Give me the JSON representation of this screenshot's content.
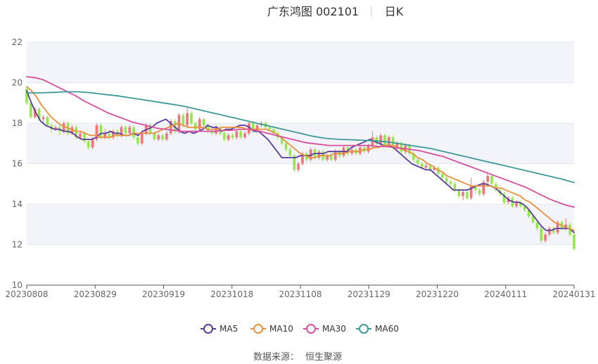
{
  "chart_data": {
    "type": "candlestick",
    "title": "广东鸿图 002101",
    "subtitle": "日K",
    "x_ticks": [
      "20230808",
      "20230829",
      "20230919",
      "20231018",
      "20231108",
      "20231129",
      "20231220",
      "20240111",
      "20240131"
    ],
    "y_ticks": [
      "10",
      "12",
      "14",
      "16",
      "18",
      "20",
      "22"
    ],
    "ylim": [
      10,
      22
    ],
    "grid": "horizontal",
    "legend_position": "bottom",
    "up_color": "#f07478",
    "down_color": "#94e84b",
    "candles": [
      {
        "o": 19.7,
        "c": 19.0,
        "h": 19.8,
        "l": 18.9
      },
      {
        "o": 19.0,
        "c": 18.3,
        "h": 19.1,
        "l": 18.2
      },
      {
        "o": 18.3,
        "c": 18.7,
        "h": 18.8,
        "l": 18.2
      },
      {
        "o": 18.7,
        "c": 18.2,
        "h": 18.8,
        "l": 18.1
      },
      {
        "o": 18.2,
        "c": 18.3,
        "h": 18.4,
        "l": 18.0
      },
      {
        "o": 18.3,
        "c": 17.9,
        "h": 18.4,
        "l": 17.8
      },
      {
        "o": 17.9,
        "c": 17.7,
        "h": 18.0,
        "l": 17.5
      },
      {
        "o": 17.7,
        "c": 17.8,
        "h": 17.9,
        "l": 17.6
      },
      {
        "o": 17.8,
        "c": 17.6,
        "h": 17.9,
        "l": 17.4
      },
      {
        "o": 17.6,
        "c": 18.0,
        "h": 18.1,
        "l": 17.5
      },
      {
        "o": 18.0,
        "c": 17.5,
        "h": 18.1,
        "l": 17.4
      },
      {
        "o": 17.5,
        "c": 17.8,
        "h": 17.9,
        "l": 17.4
      },
      {
        "o": 17.8,
        "c": 17.3,
        "h": 17.9,
        "l": 17.2
      },
      {
        "o": 17.3,
        "c": 17.5,
        "h": 17.6,
        "l": 17.2
      },
      {
        "o": 17.5,
        "c": 17.1,
        "h": 17.6,
        "l": 17.0
      },
      {
        "o": 17.1,
        "c": 16.8,
        "h": 17.2,
        "l": 16.7
      },
      {
        "o": 16.8,
        "c": 17.2,
        "h": 17.3,
        "l": 16.7
      },
      {
        "o": 17.2,
        "c": 17.9,
        "h": 18.0,
        "l": 17.1
      },
      {
        "o": 17.9,
        "c": 17.3,
        "h": 18.0,
        "l": 17.2
      },
      {
        "o": 17.3,
        "c": 17.5,
        "h": 17.7,
        "l": 17.2
      },
      {
        "o": 17.5,
        "c": 17.3,
        "h": 17.6,
        "l": 17.2
      },
      {
        "o": 17.3,
        "c": 17.6,
        "h": 17.7,
        "l": 17.2
      },
      {
        "o": 17.6,
        "c": 17.4,
        "h": 17.7,
        "l": 17.3
      },
      {
        "o": 17.4,
        "c": 17.8,
        "h": 17.9,
        "l": 17.3
      },
      {
        "o": 17.8,
        "c": 17.5,
        "h": 17.9,
        "l": 17.4
      },
      {
        "o": 17.5,
        "c": 17.8,
        "h": 17.9,
        "l": 17.4
      },
      {
        "o": 17.8,
        "c": 17.3,
        "h": 17.9,
        "l": 17.2
      },
      {
        "o": 17.3,
        "c": 17.0,
        "h": 17.4,
        "l": 16.9
      },
      {
        "o": 17.0,
        "c": 17.5,
        "h": 17.6,
        "l": 16.9
      },
      {
        "o": 17.5,
        "c": 17.9,
        "h": 18.0,
        "l": 17.4
      },
      {
        "o": 17.9,
        "c": 17.5,
        "h": 18.0,
        "l": 17.4
      },
      {
        "o": 17.5,
        "c": 17.2,
        "h": 17.6,
        "l": 17.1
      },
      {
        "o": 17.2,
        "c": 17.4,
        "h": 17.5,
        "l": 17.1
      },
      {
        "o": 17.4,
        "c": 17.2,
        "h": 17.5,
        "l": 17.1
      },
      {
        "o": 17.2,
        "c": 17.5,
        "h": 17.6,
        "l": 17.1
      },
      {
        "o": 17.5,
        "c": 18.1,
        "h": 18.2,
        "l": 17.4
      },
      {
        "o": 18.1,
        "c": 17.6,
        "h": 18.2,
        "l": 17.5
      },
      {
        "o": 17.6,
        "c": 18.4,
        "h": 18.5,
        "l": 17.5
      },
      {
        "o": 18.4,
        "c": 17.9,
        "h": 18.5,
        "l": 17.8
      },
      {
        "o": 17.9,
        "c": 18.5,
        "h": 18.8,
        "l": 17.8
      },
      {
        "o": 18.5,
        "c": 18.0,
        "h": 18.6,
        "l": 17.9
      },
      {
        "o": 18.0,
        "c": 17.7,
        "h": 18.1,
        "l": 17.6
      },
      {
        "o": 17.7,
        "c": 18.2,
        "h": 18.3,
        "l": 17.6
      },
      {
        "o": 18.2,
        "c": 17.9,
        "h": 18.3,
        "l": 17.8
      },
      {
        "o": 17.9,
        "c": 17.6,
        "h": 18.0,
        "l": 17.5
      },
      {
        "o": 17.6,
        "c": 17.5,
        "h": 17.7,
        "l": 17.4
      },
      {
        "o": 17.5,
        "c": 17.8,
        "h": 17.9,
        "l": 17.4
      },
      {
        "o": 17.8,
        "c": 17.5,
        "h": 17.9,
        "l": 17.4
      },
      {
        "o": 17.5,
        "c": 17.2,
        "h": 17.6,
        "l": 17.1
      },
      {
        "o": 17.2,
        "c": 17.4,
        "h": 17.5,
        "l": 17.1
      },
      {
        "o": 17.4,
        "c": 17.3,
        "h": 17.5,
        "l": 17.2
      },
      {
        "o": 17.3,
        "c": 17.6,
        "h": 17.7,
        "l": 17.2
      },
      {
        "o": 17.6,
        "c": 17.3,
        "h": 17.7,
        "l": 17.2
      },
      {
        "o": 17.3,
        "c": 17.5,
        "h": 17.6,
        "l": 17.2
      },
      {
        "o": 17.5,
        "c": 18.0,
        "h": 18.1,
        "l": 17.4
      },
      {
        "o": 18.0,
        "c": 17.6,
        "h": 18.1,
        "l": 17.5
      },
      {
        "o": 17.6,
        "c": 17.9,
        "h": 18.0,
        "l": 17.5
      },
      {
        "o": 17.9,
        "c": 18.0,
        "h": 18.1,
        "l": 17.8
      },
      {
        "o": 18.0,
        "c": 17.8,
        "h": 18.1,
        "l": 17.7
      },
      {
        "o": 17.8,
        "c": 17.7,
        "h": 17.9,
        "l": 17.6
      },
      {
        "o": 17.7,
        "c": 17.5,
        "h": 17.8,
        "l": 17.4
      },
      {
        "o": 17.5,
        "c": 17.3,
        "h": 17.6,
        "l": 17.2
      },
      {
        "o": 17.3,
        "c": 17.0,
        "h": 17.4,
        "l": 16.9
      },
      {
        "o": 17.0,
        "c": 16.7,
        "h": 17.1,
        "l": 16.6
      },
      {
        "o": 16.7,
        "c": 16.4,
        "h": 16.8,
        "l": 16.3
      },
      {
        "o": 16.4,
        "c": 15.7,
        "h": 16.5,
        "l": 15.6
      },
      {
        "o": 15.7,
        "c": 16.0,
        "h": 16.1,
        "l": 15.6
      },
      {
        "o": 16.0,
        "c": 16.5,
        "h": 16.6,
        "l": 15.9
      },
      {
        "o": 16.5,
        "c": 16.2,
        "h": 16.6,
        "l": 16.1
      },
      {
        "o": 16.2,
        "c": 16.7,
        "h": 16.8,
        "l": 16.1
      },
      {
        "o": 16.7,
        "c": 16.3,
        "h": 16.8,
        "l": 16.2
      },
      {
        "o": 16.3,
        "c": 16.6,
        "h": 16.7,
        "l": 16.2
      },
      {
        "o": 16.6,
        "c": 16.2,
        "h": 16.7,
        "l": 16.1
      },
      {
        "o": 16.2,
        "c": 16.4,
        "h": 16.5,
        "l": 16.1
      },
      {
        "o": 16.4,
        "c": 16.2,
        "h": 16.5,
        "l": 16.1
      },
      {
        "o": 16.2,
        "c": 16.6,
        "h": 16.7,
        "l": 16.1
      },
      {
        "o": 16.6,
        "c": 16.4,
        "h": 16.7,
        "l": 16.3
      },
      {
        "o": 16.4,
        "c": 16.8,
        "h": 16.9,
        "l": 16.3
      },
      {
        "o": 16.8,
        "c": 16.5,
        "h": 16.9,
        "l": 16.4
      },
      {
        "o": 16.5,
        "c": 16.7,
        "h": 16.8,
        "l": 16.4
      },
      {
        "o": 16.7,
        "c": 16.5,
        "h": 16.8,
        "l": 16.4
      },
      {
        "o": 16.5,
        "c": 16.8,
        "h": 16.9,
        "l": 16.4
      },
      {
        "o": 16.8,
        "c": 16.6,
        "h": 16.9,
        "l": 16.5
      },
      {
        "o": 16.6,
        "c": 16.9,
        "h": 17.0,
        "l": 16.5
      },
      {
        "o": 16.9,
        "c": 17.3,
        "h": 17.6,
        "l": 16.8
      },
      {
        "o": 17.3,
        "c": 17.0,
        "h": 17.4,
        "l": 16.9
      },
      {
        "o": 17.0,
        "c": 17.4,
        "h": 17.5,
        "l": 16.9
      },
      {
        "o": 17.4,
        "c": 16.9,
        "h": 17.5,
        "l": 16.8
      },
      {
        "o": 16.9,
        "c": 17.3,
        "h": 17.4,
        "l": 16.8
      },
      {
        "o": 17.3,
        "c": 16.8,
        "h": 17.4,
        "l": 16.7
      },
      {
        "o": 16.8,
        "c": 17.0,
        "h": 17.1,
        "l": 16.7
      },
      {
        "o": 17.0,
        "c": 16.6,
        "h": 17.1,
        "l": 16.5
      },
      {
        "o": 16.6,
        "c": 16.9,
        "h": 17.0,
        "l": 16.5
      },
      {
        "o": 16.9,
        "c": 16.5,
        "h": 17.0,
        "l": 16.4
      },
      {
        "o": 16.5,
        "c": 16.2,
        "h": 16.6,
        "l": 16.1
      },
      {
        "o": 16.2,
        "c": 16.0,
        "h": 16.3,
        "l": 15.9
      },
      {
        "o": 16.0,
        "c": 15.8,
        "h": 16.1,
        "l": 15.7
      },
      {
        "o": 15.8,
        "c": 15.9,
        "h": 16.0,
        "l": 15.7
      },
      {
        "o": 15.9,
        "c": 15.7,
        "h": 16.0,
        "l": 15.6
      },
      {
        "o": 15.7,
        "c": 15.8,
        "h": 15.9,
        "l": 15.6
      },
      {
        "o": 15.8,
        "c": 15.5,
        "h": 15.9,
        "l": 15.4
      },
      {
        "o": 15.5,
        "c": 15.3,
        "h": 15.6,
        "l": 15.2
      },
      {
        "o": 15.3,
        "c": 15.1,
        "h": 15.4,
        "l": 15.0
      },
      {
        "o": 15.1,
        "c": 15.0,
        "h": 15.2,
        "l": 14.9
      },
      {
        "o": 15.0,
        "c": 14.7,
        "h": 15.1,
        "l": 14.6
      },
      {
        "o": 14.7,
        "c": 14.4,
        "h": 14.8,
        "l": 14.3
      },
      {
        "o": 14.4,
        "c": 14.6,
        "h": 14.7,
        "l": 14.2
      },
      {
        "o": 14.6,
        "c": 14.3,
        "h": 14.7,
        "l": 14.2
      },
      {
        "o": 14.3,
        "c": 14.9,
        "h": 15.3,
        "l": 14.2
      },
      {
        "o": 14.9,
        "c": 14.7,
        "h": 15.0,
        "l": 14.5
      },
      {
        "o": 14.7,
        "c": 14.5,
        "h": 14.8,
        "l": 14.4
      },
      {
        "o": 14.5,
        "c": 15.1,
        "h": 15.2,
        "l": 14.4
      },
      {
        "o": 15.1,
        "c": 15.4,
        "h": 15.6,
        "l": 15.0
      },
      {
        "o": 15.4,
        "c": 15.0,
        "h": 15.5,
        "l": 14.9
      },
      {
        "o": 15.0,
        "c": 14.7,
        "h": 15.1,
        "l": 14.6
      },
      {
        "o": 14.7,
        "c": 14.5,
        "h": 14.8,
        "l": 14.4
      },
      {
        "o": 14.5,
        "c": 14.1,
        "h": 14.6,
        "l": 14.0
      },
      {
        "o": 14.1,
        "c": 14.3,
        "h": 14.4,
        "l": 14.0
      },
      {
        "o": 14.3,
        "c": 13.9,
        "h": 14.4,
        "l": 13.8
      },
      {
        "o": 13.9,
        "c": 14.1,
        "h": 14.2,
        "l": 13.8
      },
      {
        "o": 14.1,
        "c": 13.9,
        "h": 14.2,
        "l": 13.8
      },
      {
        "o": 13.9,
        "c": 13.7,
        "h": 14.0,
        "l": 13.6
      },
      {
        "o": 13.7,
        "c": 13.4,
        "h": 13.8,
        "l": 13.3
      },
      {
        "o": 13.4,
        "c": 13.1,
        "h": 13.5,
        "l": 13.0
      },
      {
        "o": 13.1,
        "c": 12.8,
        "h": 13.2,
        "l": 12.7
      },
      {
        "o": 12.8,
        "c": 12.2,
        "h": 12.9,
        "l": 12.1
      },
      {
        "o": 12.2,
        "c": 12.5,
        "h": 12.6,
        "l": 12.1
      },
      {
        "o": 12.5,
        "c": 12.8,
        "h": 12.9,
        "l": 12.4
      },
      {
        "o": 12.8,
        "c": 12.6,
        "h": 12.9,
        "l": 12.5
      },
      {
        "o": 12.6,
        "c": 13.1,
        "h": 13.2,
        "l": 12.5
      },
      {
        "o": 13.1,
        "c": 12.8,
        "h": 13.2,
        "l": 12.7
      },
      {
        "o": 12.8,
        "c": 13.0,
        "h": 13.3,
        "l": 12.7
      },
      {
        "o": 13.0,
        "c": 12.5,
        "h": 13.1,
        "l": 12.4
      },
      {
        "o": 12.5,
        "c": 11.8,
        "h": 12.6,
        "l": 11.7
      }
    ],
    "series": [
      {
        "name": "MA5",
        "color": "#5b3c9e",
        "values": [
          19.6,
          19.0,
          18.5,
          18.1,
          17.9,
          17.8,
          17.7,
          17.7,
          17.6,
          17.6,
          17.5,
          17.3,
          17.2,
          17.2,
          17.2,
          17.3,
          17.5,
          17.5,
          17.6,
          17.5,
          17.5,
          17.4,
          17.4,
          17.5,
          17.4,
          17.6,
          17.7,
          17.8,
          18.0,
          18.1,
          18.2,
          18.0,
          17.8,
          17.6,
          17.5,
          17.6,
          17.5,
          17.6,
          17.7,
          17.9,
          17.8,
          17.8,
          17.6,
          17.7,
          17.7,
          17.8,
          17.9,
          17.9,
          17.8,
          17.6,
          17.6,
          17.4,
          17.2,
          16.9,
          16.6,
          16.3,
          16.3,
          16.3,
          16.3,
          16.4,
          16.4,
          16.4,
          16.5,
          16.5,
          16.5,
          16.6,
          16.6,
          16.6,
          16.6,
          16.6,
          16.8,
          16.9,
          17.0,
          17.1,
          17.2,
          17.1,
          17.0,
          16.9,
          16.9,
          16.8,
          16.6,
          16.4,
          16.2,
          16.0,
          15.9,
          15.8,
          15.7,
          15.7,
          15.5,
          15.3,
          15.1,
          14.9,
          14.7,
          14.7,
          14.7,
          14.7,
          14.8,
          14.9,
          15.0,
          15.0,
          14.9,
          14.8,
          14.6,
          14.4,
          14.2,
          14.1,
          14.1,
          14.0,
          13.8,
          13.5,
          13.2,
          12.9,
          12.7,
          12.7,
          12.8,
          12.8,
          12.8,
          12.8,
          12.6
        ]
      },
      {
        "name": "MA10",
        "color": "#e8913e",
        "values": [
          19.8,
          19.6,
          19.3,
          18.9,
          18.6,
          18.3,
          18.1,
          17.9,
          17.8,
          17.7,
          17.6,
          17.6,
          17.5,
          17.4,
          17.4,
          17.3,
          17.3,
          17.3,
          17.4,
          17.4,
          17.4,
          17.4,
          17.5,
          17.5,
          17.5,
          17.5,
          17.5,
          17.6,
          17.7,
          17.8,
          17.9,
          18.0,
          17.9,
          17.8,
          17.8,
          17.8,
          17.8,
          17.7,
          17.7,
          17.7,
          17.8,
          17.8,
          17.8,
          17.8,
          17.8,
          17.7,
          17.7,
          17.7,
          17.7,
          17.7,
          17.6,
          17.5,
          17.3,
          17.1,
          16.9,
          16.7,
          16.5,
          16.4,
          16.3,
          16.3,
          16.4,
          16.4,
          16.4,
          16.5,
          16.5,
          16.5,
          16.6,
          16.6,
          16.6,
          16.7,
          16.7,
          16.8,
          16.8,
          16.9,
          16.9,
          16.9,
          16.8,
          16.7,
          16.6,
          16.5,
          16.3,
          16.2,
          16.0,
          15.9,
          15.7,
          15.6,
          15.4,
          15.3,
          15.2,
          15.1,
          15.0,
          14.9,
          14.9,
          14.9,
          14.9,
          14.9,
          14.8,
          14.8,
          14.7,
          14.6,
          14.5,
          14.4,
          14.2,
          14.1,
          13.9,
          13.7,
          13.5,
          13.3,
          13.1,
          13.0,
          12.9,
          12.8,
          12.7
        ]
      },
      {
        "name": "MA30",
        "color": "#d94f9f",
        "values": [
          20.3,
          20.25,
          20.15,
          19.95,
          19.75,
          19.55,
          19.35,
          19.1,
          18.9,
          18.7,
          18.5,
          18.35,
          18.2,
          18.05,
          17.95,
          17.85,
          17.75,
          17.7,
          17.65,
          17.6,
          17.6,
          17.6,
          17.6,
          17.6,
          17.65,
          17.65,
          17.7,
          17.7,
          17.65,
          17.55,
          17.45,
          17.35,
          17.25,
          17.15,
          17.05,
          17.0,
          16.95,
          16.9,
          16.9,
          16.9,
          16.9,
          16.9,
          16.9,
          16.85,
          16.85,
          16.8,
          16.75,
          16.7,
          16.65,
          16.55,
          16.45,
          16.35,
          16.2,
          16.05,
          15.9,
          15.75,
          15.6,
          15.45,
          15.3,
          15.15,
          15.0,
          14.85,
          14.65,
          14.45,
          14.25,
          14.1,
          13.95,
          13.85
        ]
      },
      {
        "name": "MA60",
        "color": "#3e9a9a",
        "values": [
          19.5,
          19.5,
          19.52,
          19.55,
          19.55,
          19.5,
          19.42,
          19.35,
          19.25,
          19.15,
          19.05,
          18.95,
          18.85,
          18.7,
          18.55,
          18.4,
          18.25,
          18.1,
          17.95,
          17.8,
          17.65,
          17.5,
          17.35,
          17.25,
          17.2,
          17.18,
          17.15,
          17.12,
          17.05,
          16.95,
          16.85,
          16.75,
          16.6,
          16.45,
          16.3,
          16.15,
          16.0,
          15.85,
          15.7,
          15.55,
          15.4,
          15.25,
          15.07
        ]
      }
    ]
  },
  "legend": [
    {
      "label": "MA5",
      "color": "#5b3c9e"
    },
    {
      "label": "MA10",
      "color": "#e8913e"
    },
    {
      "label": "MA30",
      "color": "#d94f9f"
    },
    {
      "label": "MA60",
      "color": "#3e9a9a"
    }
  ],
  "source_label": "数据来源：",
  "source_value": "恒生聚源"
}
